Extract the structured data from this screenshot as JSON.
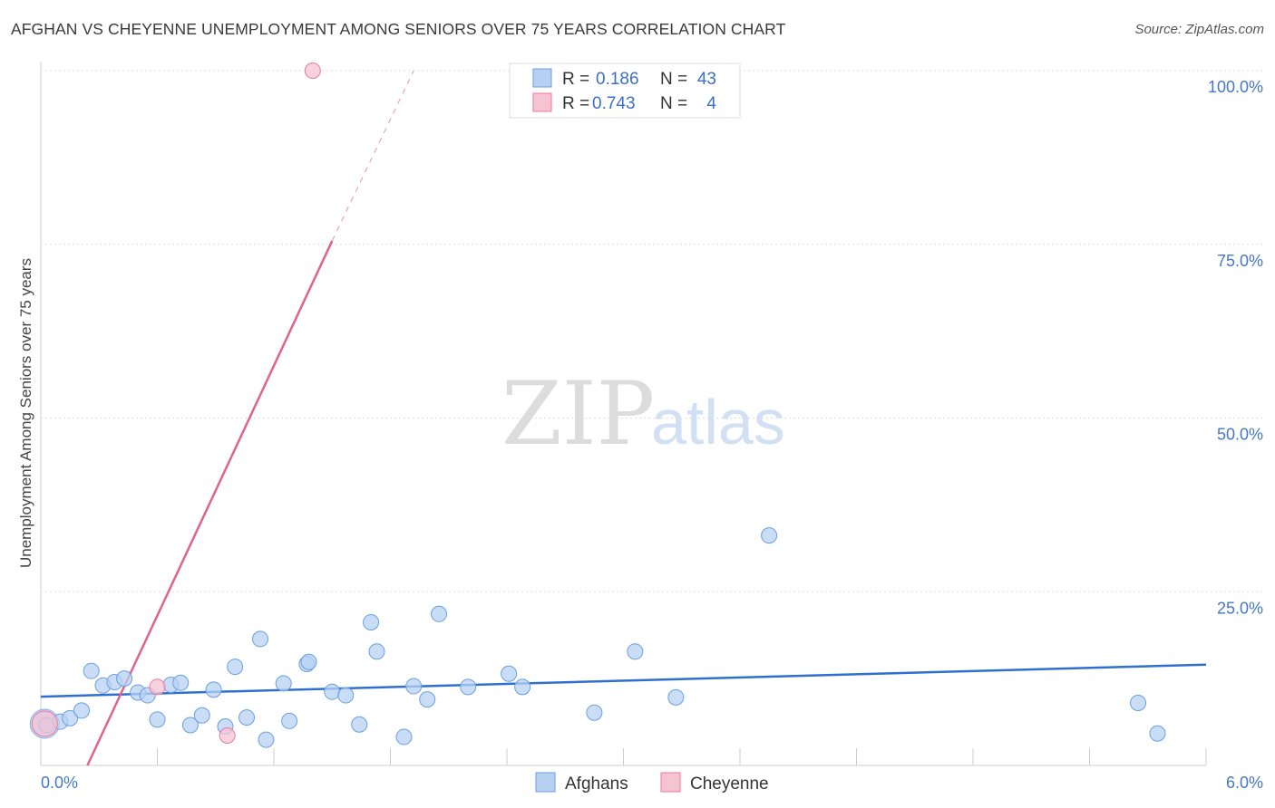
{
  "title": "AFGHAN VS CHEYENNE UNEMPLOYMENT AMONG SENIORS OVER 75 YEARS CORRELATION CHART",
  "source": "Source: ZipAtlas.com",
  "watermark": {
    "zip": "ZIP",
    "atlas": "atlas"
  },
  "colors": {
    "afghans": "#6a9fe0",
    "afghans_fill": "#b8d1f3",
    "cheyenne": "#e97aa0",
    "cheyenne_fill": "#f6c3d3",
    "trend_blue": "#2f6fd0",
    "trend_pink": "#e0638f",
    "tick": "#4477cc"
  },
  "legend": {
    "rows": [
      {
        "r_label": "R =",
        "r_value": "0.186",
        "n_label": "N =",
        "n_value": "43"
      },
      {
        "r_label": "R =",
        "r_value": "0.743",
        "n_label": "N =",
        "n_value": "4"
      }
    ],
    "series": [
      "Afghans",
      "Cheyenne"
    ]
  },
  "chart_data": {
    "type": "scatter",
    "title": "AFGHAN VS CHEYENNE UNEMPLOYMENT AMONG SENIORS OVER 75 YEARS CORRELATION CHART",
    "xlabel": "",
    "ylabel": "Unemployment Among Seniors over 75 years",
    "xlim": [
      0,
      6
    ],
    "ylim": [
      0,
      100
    ],
    "x_tick_labels": [
      "0.0%",
      "6.0%"
    ],
    "y_ticks": [
      25,
      50,
      75,
      100
    ],
    "y_tick_labels": [
      "25.0%",
      "50.0%",
      "75.0%",
      "100.0%"
    ],
    "series": [
      {
        "name": "Afghans",
        "points": [
          {
            "x": 0.03,
            "y": 5.8
          },
          {
            "x": 0.1,
            "y": 6.3
          },
          {
            "x": 0.15,
            "y": 6.8
          },
          {
            "x": 0.21,
            "y": 7.9
          },
          {
            "x": 0.26,
            "y": 13.6
          },
          {
            "x": 0.32,
            "y": 11.5
          },
          {
            "x": 0.38,
            "y": 12.0
          },
          {
            "x": 0.43,
            "y": 12.5
          },
          {
            "x": 0.5,
            "y": 10.5
          },
          {
            "x": 0.55,
            "y": 10.1
          },
          {
            "x": 0.6,
            "y": 6.6
          },
          {
            "x": 0.67,
            "y": 11.6
          },
          {
            "x": 0.72,
            "y": 11.9
          },
          {
            "x": 0.77,
            "y": 5.8
          },
          {
            "x": 0.83,
            "y": 7.2
          },
          {
            "x": 0.89,
            "y": 10.9
          },
          {
            "x": 0.95,
            "y": 5.6
          },
          {
            "x": 1.0,
            "y": 14.2
          },
          {
            "x": 1.06,
            "y": 6.9
          },
          {
            "x": 1.13,
            "y": 18.2
          },
          {
            "x": 1.16,
            "y": 3.7
          },
          {
            "x": 1.25,
            "y": 11.8
          },
          {
            "x": 1.28,
            "y": 6.4
          },
          {
            "x": 1.37,
            "y": 14.6
          },
          {
            "x": 1.38,
            "y": 14.9
          },
          {
            "x": 1.5,
            "y": 10.6
          },
          {
            "x": 1.57,
            "y": 10.1
          },
          {
            "x": 1.64,
            "y": 5.9
          },
          {
            "x": 1.7,
            "y": 20.6
          },
          {
            "x": 1.73,
            "y": 16.4
          },
          {
            "x": 1.87,
            "y": 4.1
          },
          {
            "x": 1.92,
            "y": 11.4
          },
          {
            "x": 1.99,
            "y": 9.5
          },
          {
            "x": 2.05,
            "y": 21.8
          },
          {
            "x": 2.2,
            "y": 11.3
          },
          {
            "x": 2.41,
            "y": 13.2
          },
          {
            "x": 2.48,
            "y": 11.3
          },
          {
            "x": 2.85,
            "y": 7.6
          },
          {
            "x": 3.06,
            "y": 16.4
          },
          {
            "x": 3.27,
            "y": 9.8
          },
          {
            "x": 3.75,
            "y": 33.1
          },
          {
            "x": 5.65,
            "y": 9.0
          },
          {
            "x": 5.75,
            "y": 4.6
          }
        ],
        "trend": {
          "x": [
            0,
            6
          ],
          "y": [
            9.9,
            14.5
          ]
        }
      },
      {
        "name": "Cheyenne",
        "points": [
          {
            "x": 0.02,
            "y": 6.0
          },
          {
            "x": 0.6,
            "y": 11.3
          },
          {
            "x": 0.96,
            "y": 4.3
          },
          {
            "x": 1.4,
            "y": 100.0
          }
        ],
        "trend": {
          "x": [
            0.24,
            1.5
          ],
          "y": [
            0.0,
            75.5
          ],
          "dashed_to": {
            "x": 1.92,
            "y": 100.0
          }
        }
      }
    ]
  }
}
